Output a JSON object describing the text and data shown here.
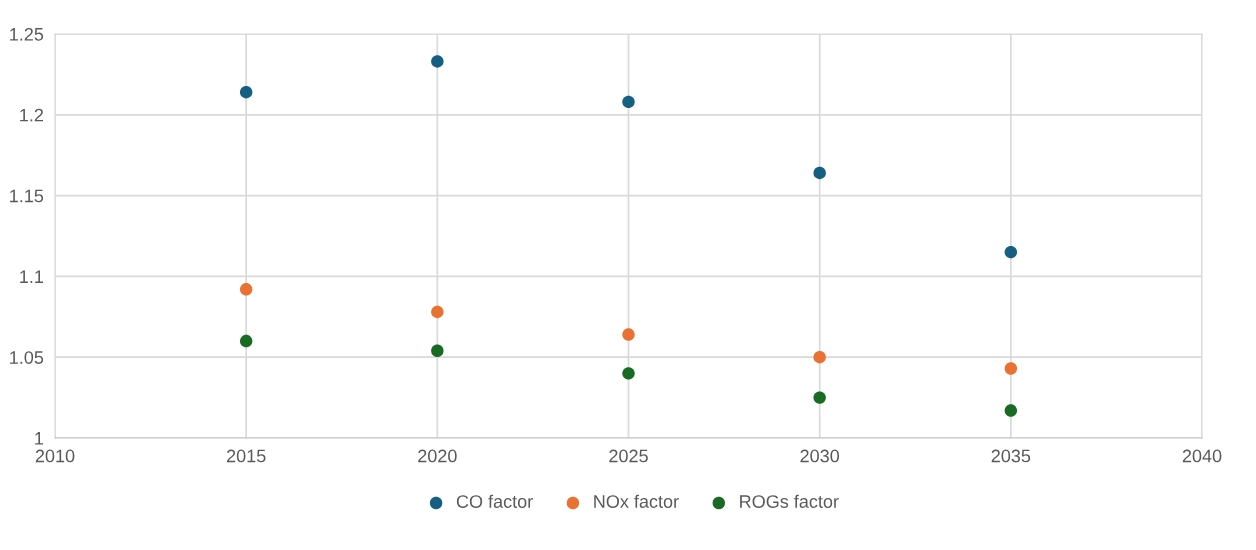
{
  "chart_data": {
    "type": "scatter",
    "x": [
      2015,
      2020,
      2025,
      2030,
      2035
    ],
    "series": [
      {
        "name": "CO factor",
        "color": "#156082",
        "values": [
          1.214,
          1.233,
          1.208,
          1.164,
          1.115
        ]
      },
      {
        "name": "NOx factor",
        "color": "#e97132",
        "values": [
          1.092,
          1.078,
          1.064,
          1.05,
          1.043
        ]
      },
      {
        "name": "ROGs factor",
        "color": "#196b24",
        "values": [
          1.06,
          1.054,
          1.04,
          1.025,
          1.017
        ]
      }
    ],
    "xlim": [
      2010,
      2040
    ],
    "xticks": [
      2010,
      2015,
      2020,
      2025,
      2030,
      2035,
      2040
    ],
    "ylim": [
      1,
      1.25
    ],
    "yticks": [
      {
        "value": 1,
        "label": "1"
      },
      1.05,
      1.1,
      1.15,
      1.2,
      1.25
    ],
    "grid": true,
    "legend": "bottom",
    "marker": "circle"
  }
}
